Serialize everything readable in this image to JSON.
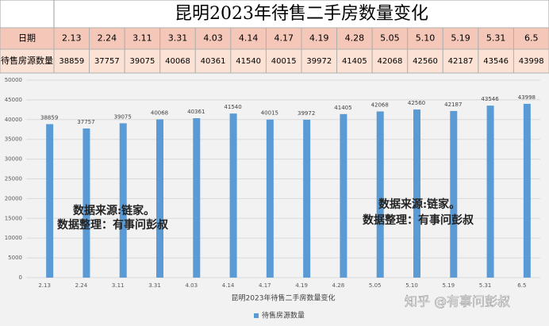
{
  "table": {
    "title": "昆明2023年待售二手房数量变化",
    "row_labels": [
      "日期",
      "待售房源数量"
    ]
  },
  "chart_data": {
    "type": "bar",
    "x_label": "昆明2023年待售二手房数量变化",
    "categories": [
      "2.13",
      "2.24",
      "3.11",
      "3.31",
      "4.03",
      "4.14",
      "4.17",
      "4.19",
      "4.28",
      "5.05",
      "5.10",
      "5.19",
      "5.31",
      "6.5"
    ],
    "series": [
      {
        "name": "待售房源数量",
        "color": "#5b9bd5",
        "values": [
          38859,
          37757,
          39075,
          40068,
          40361,
          41540,
          40015,
          39972,
          41405,
          42068,
          42560,
          42187,
          43546,
          43998
        ]
      }
    ],
    "ylim": [
      0,
      50000
    ],
    "yticks": [
      0,
      5000,
      10000,
      15000,
      20000,
      25000,
      30000,
      35000,
      40000,
      45000,
      50000
    ],
    "grid": true,
    "legend": "bottom",
    "annotations": [
      "数据来源:链家。",
      "数据整理：有事问彭叔"
    ],
    "watermark": "知乎 @有事问彭叔"
  }
}
